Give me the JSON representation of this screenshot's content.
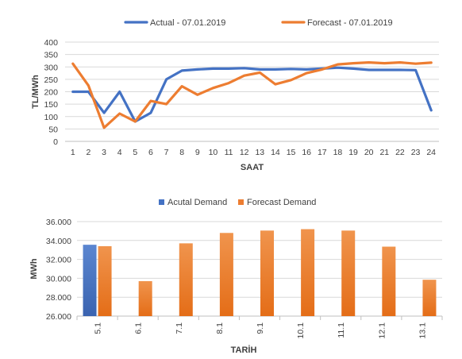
{
  "chart_data": [
    {
      "type": "line",
      "title": "",
      "xlabel": "SAAT",
      "ylabel": "TL/MWh",
      "x": [
        1,
        2,
        3,
        4,
        5,
        6,
        7,
        8,
        9,
        10,
        11,
        12,
        13,
        14,
        15,
        16,
        17,
        18,
        19,
        20,
        21,
        22,
        23,
        24
      ],
      "x_tick_labels": [
        "1",
        "2",
        "3",
        "4",
        "5",
        "6",
        "7",
        "8",
        "9",
        "10",
        "11",
        "12",
        "13",
        "14",
        "15",
        "16",
        "17",
        "18",
        "19",
        "20",
        "21",
        "22",
        "23",
        "24"
      ],
      "ylim": [
        0,
        400
      ],
      "y_tick_labels": [
        "0",
        "50",
        "100",
        "150",
        "200",
        "250",
        "300",
        "350",
        "400"
      ],
      "grid": "horizontal",
      "legend_position": "top",
      "series": [
        {
          "name": "Actual - 07.01.2019",
          "color": "#4472C4",
          "values": [
            200,
            200,
            115,
            200,
            80,
            115,
            250,
            285,
            290,
            293,
            293,
            295,
            290,
            290,
            292,
            290,
            293,
            297,
            293,
            288,
            288,
            288,
            287,
            125
          ]
        },
        {
          "name": "Forecast - 07.01.2019",
          "color": "#ED7D31",
          "values": [
            313,
            225,
            55,
            112,
            80,
            163,
            150,
            222,
            188,
            215,
            235,
            265,
            277,
            230,
            247,
            275,
            290,
            310,
            315,
            318,
            315,
            318,
            313,
            317
          ]
        }
      ]
    },
    {
      "type": "bar",
      "title": "",
      "xlabel": "TARİH",
      "ylabel": "MWh",
      "categories": [
        "5.1",
        "6.1",
        "7.1",
        "8.1",
        "9.1",
        "10.1",
        "11.1",
        "12.1",
        "13.1"
      ],
      "ylim": [
        26000,
        36000
      ],
      "y_tick_labels": [
        "26.000",
        "28.000",
        "30.000",
        "32.000",
        "34.000",
        "36.000"
      ],
      "grid": "horizontal",
      "legend_position": "top",
      "series": [
        {
          "name": "Acutal Demand",
          "color": "#4472C4",
          "values": [
            33550,
            null,
            null,
            null,
            null,
            null,
            null,
            null,
            null
          ]
        },
        {
          "name": "Forecast Demand",
          "color": "#ED7D31",
          "values": [
            33400,
            29700,
            33700,
            34800,
            35050,
            35200,
            35050,
            33350,
            29850
          ]
        }
      ]
    }
  ]
}
